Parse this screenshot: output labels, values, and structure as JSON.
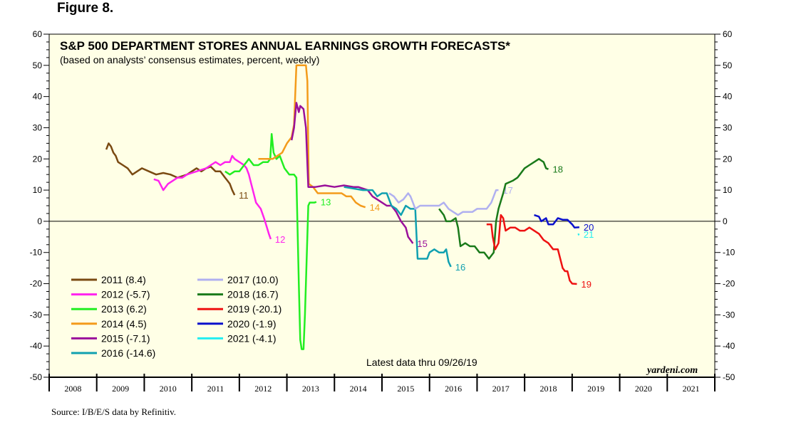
{
  "figure_label": "Figure 8.",
  "source": "Source: I/B/E/S data by Refinitiv.",
  "chart_data": {
    "type": "line",
    "title": "S&P 500 DEPARTMENT STORES ANNUAL EARNINGS GROWTH FORECASTS*",
    "subtitle": "(based on analysts’ consensus estimates, percent, weekly)",
    "xlabel": "",
    "ylabel": "",
    "ylim": [
      -50,
      60
    ],
    "xlim": [
      2008,
      2022
    ],
    "y_ticks": [
      60,
      50,
      40,
      30,
      20,
      10,
      0,
      -10,
      -20,
      -30,
      -40,
      -50
    ],
    "x_tick_labels": [
      "2008",
      "2009",
      "2010",
      "2011",
      "2012",
      "2013",
      "2014",
      "2015",
      "2016",
      "2017",
      "2018",
      "2019",
      "2020",
      "2021"
    ],
    "annotation_latest": "Latest data thru 09/26/19",
    "brand": "yardeni.com",
    "plot_background": "#ffffe6",
    "series": [
      {
        "name": "2011",
        "legend": "2011 (8.4)",
        "end_label": "11",
        "color": "#7a4a12",
        "points": [
          [
            2009.2,
            23
          ],
          [
            2009.25,
            25
          ],
          [
            2009.3,
            24
          ],
          [
            2009.35,
            22
          ],
          [
            2009.4,
            21
          ],
          [
            2009.45,
            19
          ],
          [
            2009.55,
            18
          ],
          [
            2009.65,
            17
          ],
          [
            2009.75,
            15
          ],
          [
            2009.85,
            16
          ],
          [
            2009.95,
            17
          ],
          [
            2010.1,
            16
          ],
          [
            2010.25,
            15
          ],
          [
            2010.4,
            15.5
          ],
          [
            2010.55,
            15
          ],
          [
            2010.7,
            14
          ],
          [
            2010.8,
            14.5
          ],
          [
            2010.9,
            15
          ],
          [
            2011.0,
            16
          ],
          [
            2011.1,
            17
          ],
          [
            2011.2,
            16
          ],
          [
            2011.3,
            17
          ],
          [
            2011.4,
            17.5
          ],
          [
            2011.5,
            16
          ],
          [
            2011.6,
            16
          ],
          [
            2011.7,
            14
          ],
          [
            2011.75,
            13
          ],
          [
            2011.8,
            12
          ],
          [
            2011.85,
            10
          ],
          [
            2011.9,
            8.4
          ]
        ]
      },
      {
        "name": "2012",
        "legend": "2012 (-5.7)",
        "end_label": "12",
        "color": "#ff22ee",
        "points": [
          [
            2010.2,
            13.5
          ],
          [
            2010.3,
            13
          ],
          [
            2010.4,
            10
          ],
          [
            2010.5,
            12
          ],
          [
            2010.6,
            13
          ],
          [
            2010.7,
            14
          ],
          [
            2010.8,
            14
          ],
          [
            2010.9,
            15
          ],
          [
            2011.0,
            15.5
          ],
          [
            2011.1,
            16
          ],
          [
            2011.2,
            16.5
          ],
          [
            2011.3,
            17
          ],
          [
            2011.4,
            18
          ],
          [
            2011.5,
            19
          ],
          [
            2011.6,
            18
          ],
          [
            2011.7,
            19
          ],
          [
            2011.8,
            19
          ],
          [
            2011.85,
            21
          ],
          [
            2011.9,
            20
          ],
          [
            2012.0,
            19
          ],
          [
            2012.1,
            18
          ],
          [
            2012.15,
            17
          ],
          [
            2012.2,
            15
          ],
          [
            2012.25,
            12
          ],
          [
            2012.3,
            9
          ],
          [
            2012.35,
            6
          ],
          [
            2012.45,
            4
          ],
          [
            2012.52,
            1
          ],
          [
            2012.58,
            -2
          ],
          [
            2012.62,
            -4
          ],
          [
            2012.66,
            -5.7
          ]
        ]
      },
      {
        "name": "2013",
        "legend": "2013 (6.2)",
        "end_label": "13",
        "color": "#22ee22",
        "points": [
          [
            2011.7,
            16
          ],
          [
            2011.8,
            15
          ],
          [
            2011.9,
            16
          ],
          [
            2012.0,
            16
          ],
          [
            2012.05,
            17
          ],
          [
            2012.1,
            18
          ],
          [
            2012.15,
            19
          ],
          [
            2012.2,
            20
          ],
          [
            2012.3,
            18
          ],
          [
            2012.4,
            18
          ],
          [
            2012.5,
            19
          ],
          [
            2012.6,
            19
          ],
          [
            2012.65,
            20
          ],
          [
            2012.68,
            28
          ],
          [
            2012.72,
            22
          ],
          [
            2012.78,
            20
          ],
          [
            2012.85,
            21
          ],
          [
            2012.9,
            19
          ],
          [
            2012.95,
            17
          ],
          [
            2013.05,
            15
          ],
          [
            2013.15,
            15
          ],
          [
            2013.2,
            14
          ],
          [
            2013.25,
            -20
          ],
          [
            2013.28,
            -38
          ],
          [
            2013.31,
            -41
          ],
          [
            2013.35,
            -41
          ],
          [
            2013.38,
            -30
          ],
          [
            2013.42,
            -10
          ],
          [
            2013.45,
            5
          ],
          [
            2013.48,
            6
          ],
          [
            2013.52,
            6
          ],
          [
            2013.58,
            6
          ],
          [
            2013.62,
            6.2
          ]
        ]
      },
      {
        "name": "2014",
        "legend": "2014 (4.5)",
        "end_label": "14",
        "color": "#f39b1b",
        "points": [
          [
            2012.4,
            20
          ],
          [
            2012.5,
            20
          ],
          [
            2012.6,
            20
          ],
          [
            2012.7,
            20
          ],
          [
            2012.8,
            21
          ],
          [
            2012.9,
            22
          ],
          [
            2013.0,
            25
          ],
          [
            2013.1,
            27
          ],
          [
            2013.15,
            31
          ],
          [
            2013.2,
            50
          ],
          [
            2013.3,
            50
          ],
          [
            2013.4,
            50
          ],
          [
            2013.43,
            45
          ],
          [
            2013.46,
            12
          ],
          [
            2013.55,
            11
          ],
          [
            2013.65,
            9
          ],
          [
            2013.8,
            9
          ],
          [
            2014.0,
            9
          ],
          [
            2014.15,
            9
          ],
          [
            2014.25,
            8
          ],
          [
            2014.35,
            8
          ],
          [
            2014.45,
            6
          ],
          [
            2014.55,
            5
          ],
          [
            2014.65,
            4.5
          ]
        ]
      },
      {
        "name": "2015",
        "legend": "2015 (-7.1)",
        "end_label": "15",
        "color": "#9a109a",
        "points": [
          [
            2013.1,
            26
          ],
          [
            2013.15,
            30
          ],
          [
            2013.2,
            38
          ],
          [
            2013.25,
            35
          ],
          [
            2013.28,
            37
          ],
          [
            2013.35,
            36
          ],
          [
            2013.4,
            30
          ],
          [
            2013.45,
            11
          ],
          [
            2013.6,
            11
          ],
          [
            2013.8,
            11.5
          ],
          [
            2014.0,
            11
          ],
          [
            2014.2,
            11.5
          ],
          [
            2014.4,
            11
          ],
          [
            2014.5,
            11
          ],
          [
            2014.7,
            10
          ],
          [
            2014.8,
            8
          ],
          [
            2014.9,
            7
          ],
          [
            2015.0,
            6
          ],
          [
            2015.1,
            5
          ],
          [
            2015.2,
            5
          ],
          [
            2015.3,
            3
          ],
          [
            2015.4,
            0
          ],
          [
            2015.5,
            -2
          ],
          [
            2015.55,
            -5
          ],
          [
            2015.6,
            -6
          ],
          [
            2015.65,
            -7.1
          ]
        ]
      },
      {
        "name": "2016",
        "legend": "2016 (-14.6)",
        "end_label": "16",
        "color": "#10a0b0",
        "points": [
          [
            2014.2,
            11
          ],
          [
            2014.4,
            10.5
          ],
          [
            2014.6,
            10
          ],
          [
            2014.8,
            10
          ],
          [
            2014.9,
            8
          ],
          [
            2015.0,
            9
          ],
          [
            2015.1,
            9
          ],
          [
            2015.2,
            5
          ],
          [
            2015.3,
            4
          ],
          [
            2015.4,
            2
          ],
          [
            2015.5,
            5
          ],
          [
            2015.6,
            4
          ],
          [
            2015.7,
            4
          ],
          [
            2015.75,
            -12
          ],
          [
            2015.85,
            -12
          ],
          [
            2015.95,
            -12
          ],
          [
            2016.0,
            -10
          ],
          [
            2016.1,
            -9
          ],
          [
            2016.2,
            -10
          ],
          [
            2016.3,
            -10
          ],
          [
            2016.35,
            -9
          ],
          [
            2016.4,
            -13
          ],
          [
            2016.45,
            -14.6
          ]
        ]
      },
      {
        "name": "2017",
        "legend": "2017 (10.0)",
        "end_label": "17",
        "color": "#b0b0f0",
        "points": [
          [
            2015.15,
            9
          ],
          [
            2015.25,
            8
          ],
          [
            2015.35,
            6
          ],
          [
            2015.45,
            7
          ],
          [
            2015.55,
            9
          ],
          [
            2015.6,
            8
          ],
          [
            2015.65,
            6
          ],
          [
            2015.7,
            4
          ],
          [
            2015.8,
            5
          ],
          [
            2015.9,
            5
          ],
          [
            2016.0,
            5
          ],
          [
            2016.1,
            5
          ],
          [
            2016.2,
            5
          ],
          [
            2016.3,
            6
          ],
          [
            2016.4,
            4
          ],
          [
            2016.5,
            3
          ],
          [
            2016.6,
            2
          ],
          [
            2016.7,
            3
          ],
          [
            2016.8,
            3
          ],
          [
            2016.9,
            3
          ],
          [
            2017.0,
            4
          ],
          [
            2017.1,
            4
          ],
          [
            2017.2,
            4
          ],
          [
            2017.3,
            6
          ],
          [
            2017.4,
            10
          ],
          [
            2017.45,
            10
          ]
        ]
      },
      {
        "name": "2018",
        "legend": "2018 (16.7)",
        "end_label": "18",
        "color": "#1a7a1a",
        "points": [
          [
            2016.2,
            4
          ],
          [
            2016.3,
            2
          ],
          [
            2016.35,
            0
          ],
          [
            2016.45,
            0
          ],
          [
            2016.55,
            1
          ],
          [
            2016.6,
            -2
          ],
          [
            2016.65,
            -8
          ],
          [
            2016.75,
            -7
          ],
          [
            2016.85,
            -8
          ],
          [
            2016.95,
            -8
          ],
          [
            2017.05,
            -10
          ],
          [
            2017.15,
            -10
          ],
          [
            2017.25,
            -12
          ],
          [
            2017.35,
            -10
          ],
          [
            2017.4,
            0
          ],
          [
            2017.45,
            4
          ],
          [
            2017.55,
            9
          ],
          [
            2017.6,
            12
          ],
          [
            2017.75,
            13
          ],
          [
            2017.85,
            14
          ],
          [
            2017.9,
            15
          ],
          [
            2018.0,
            17
          ],
          [
            2018.1,
            18
          ],
          [
            2018.2,
            19
          ],
          [
            2018.3,
            20
          ],
          [
            2018.4,
            19
          ],
          [
            2018.45,
            17
          ],
          [
            2018.5,
            16.7
          ]
        ]
      },
      {
        "name": "2019",
        "legend": "2019 (-20.1)",
        "end_label": "19",
        "color": "#ee1111",
        "points": [
          [
            2017.2,
            -1
          ],
          [
            2017.3,
            -1
          ],
          [
            2017.33,
            -5
          ],
          [
            2017.38,
            -9
          ],
          [
            2017.45,
            -7
          ],
          [
            2017.5,
            2
          ],
          [
            2017.55,
            1
          ],
          [
            2017.6,
            -3
          ],
          [
            2017.7,
            -2
          ],
          [
            2017.8,
            -2
          ],
          [
            2017.9,
            -3
          ],
          [
            2018.0,
            -3
          ],
          [
            2018.1,
            -2
          ],
          [
            2018.2,
            -3
          ],
          [
            2018.3,
            -4
          ],
          [
            2018.4,
            -6
          ],
          [
            2018.5,
            -7
          ],
          [
            2018.6,
            -9
          ],
          [
            2018.7,
            -9
          ],
          [
            2018.8,
            -15
          ],
          [
            2018.85,
            -16
          ],
          [
            2018.9,
            -16
          ],
          [
            2018.95,
            -19
          ],
          [
            2019.0,
            -20
          ],
          [
            2019.1,
            -20.1
          ]
        ]
      },
      {
        "name": "2020",
        "legend": "2020 (-1.9)",
        "end_label": "20",
        "color": "#0a10cc",
        "points": [
          [
            2018.2,
            2
          ],
          [
            2018.3,
            1.5
          ],
          [
            2018.35,
            0
          ],
          [
            2018.45,
            1
          ],
          [
            2018.5,
            -1
          ],
          [
            2018.6,
            -1
          ],
          [
            2018.7,
            1
          ],
          [
            2018.8,
            0.5
          ],
          [
            2018.9,
            0.5
          ],
          [
            2019.0,
            -1
          ],
          [
            2019.05,
            -2
          ],
          [
            2019.15,
            -1.9
          ]
        ]
      },
      {
        "name": "2021",
        "legend": "2021 (-4.1)",
        "end_label": "21",
        "color": "#22eef0",
        "points": [
          [
            2019.12,
            -4.3
          ],
          [
            2019.15,
            -4.1
          ]
        ]
      }
    ]
  }
}
